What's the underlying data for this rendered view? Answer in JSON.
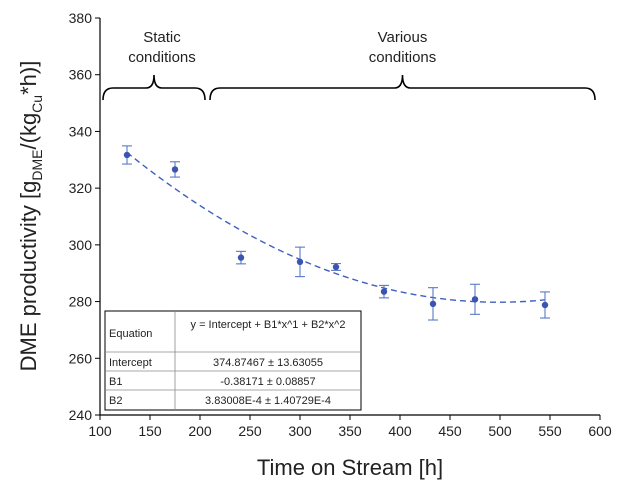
{
  "chart_data": {
    "type": "scatter",
    "xlabel": "Time on Stream [h]",
    "ylabel_parts": {
      "main": "DME productivity [g",
      "sub1": "DME",
      "mid": "/(kg",
      "sub2": "Cu",
      "end": "*h)]"
    },
    "xlim": [
      100,
      600
    ],
    "ylim": [
      240,
      380
    ],
    "xticks": [
      100,
      150,
      200,
      250,
      300,
      350,
      400,
      450,
      500,
      550,
      600
    ],
    "yticks": [
      240,
      260,
      280,
      300,
      320,
      340,
      360,
      380
    ],
    "series": [
      {
        "x": [
          127,
          175,
          241,
          300,
          336,
          384,
          433,
          475,
          545
        ],
        "y": [
          331.7,
          326.6,
          295.5,
          294.0,
          292.2,
          283.5,
          279.2,
          280.8,
          278.8
        ],
        "err": [
          3.2,
          2.7,
          2.2,
          5.2,
          1.2,
          2.2,
          5.7,
          5.3,
          4.6
        ]
      }
    ],
    "fit": {
      "intercept": 374.87467,
      "b1": -0.38171,
      "b2": 0.000383008,
      "x_range": [
        127,
        545
      ]
    },
    "annotations": {
      "static": {
        "line1": "Static",
        "line2": "conditions",
        "x_range": [
          103,
          205
        ]
      },
      "various": {
        "line1": "Various",
        "line2": "conditions",
        "x_range": [
          210,
          595
        ]
      }
    },
    "fit_table": {
      "equation_label": "Equation",
      "equation": "y = Intercept + B1*x^1 + B2*x^2",
      "rows": [
        {
          "name": "Intercept",
          "value": "374.87467 ± 13.63055"
        },
        {
          "name": "B1",
          "value": "-0.38171 ± 0.08857"
        },
        {
          "name": "B2",
          "value": "3.83008E-4 ± 1.40729E-4"
        }
      ]
    },
    "colors": {
      "points": "#3b54b0",
      "fit": "#3f5fbf",
      "errorbars": "#5a78c8"
    },
    "grid": false
  }
}
